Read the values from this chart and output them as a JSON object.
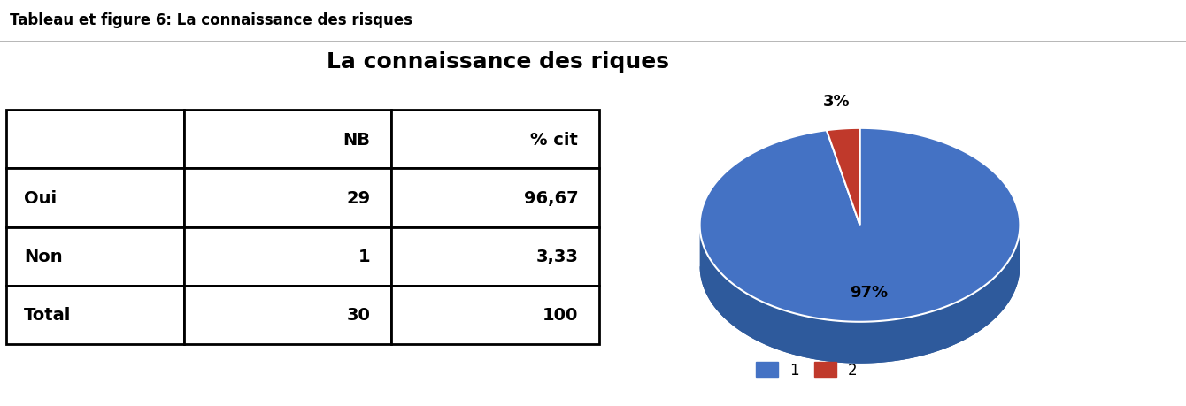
{
  "title": "La connaissance des riques",
  "header_title": "Tableau et figure 6: La connaissance des risques",
  "table_col_labels": [
    "",
    "NB",
    "% cit"
  ],
  "table_rows": [
    [
      "Oui",
      "29",
      "96,67"
    ],
    [
      "Non",
      "1",
      "3,33"
    ],
    [
      "Total",
      "30",
      "100"
    ]
  ],
  "pie_values": [
    96.67,
    3.33
  ],
  "pie_labels": [
    "97%",
    "3%"
  ],
  "pie_colors": [
    "#4472C4",
    "#C0392B"
  ],
  "pie_dark_colors": [
    "#2E5A9C",
    "#7B0000"
  ],
  "legend_labels": [
    "1",
    "2"
  ],
  "legend_colors": [
    "#4472C4",
    "#C0392B"
  ],
  "bg_color": "#FFFFFF",
  "title_fontsize": 18,
  "header_fontsize": 12
}
